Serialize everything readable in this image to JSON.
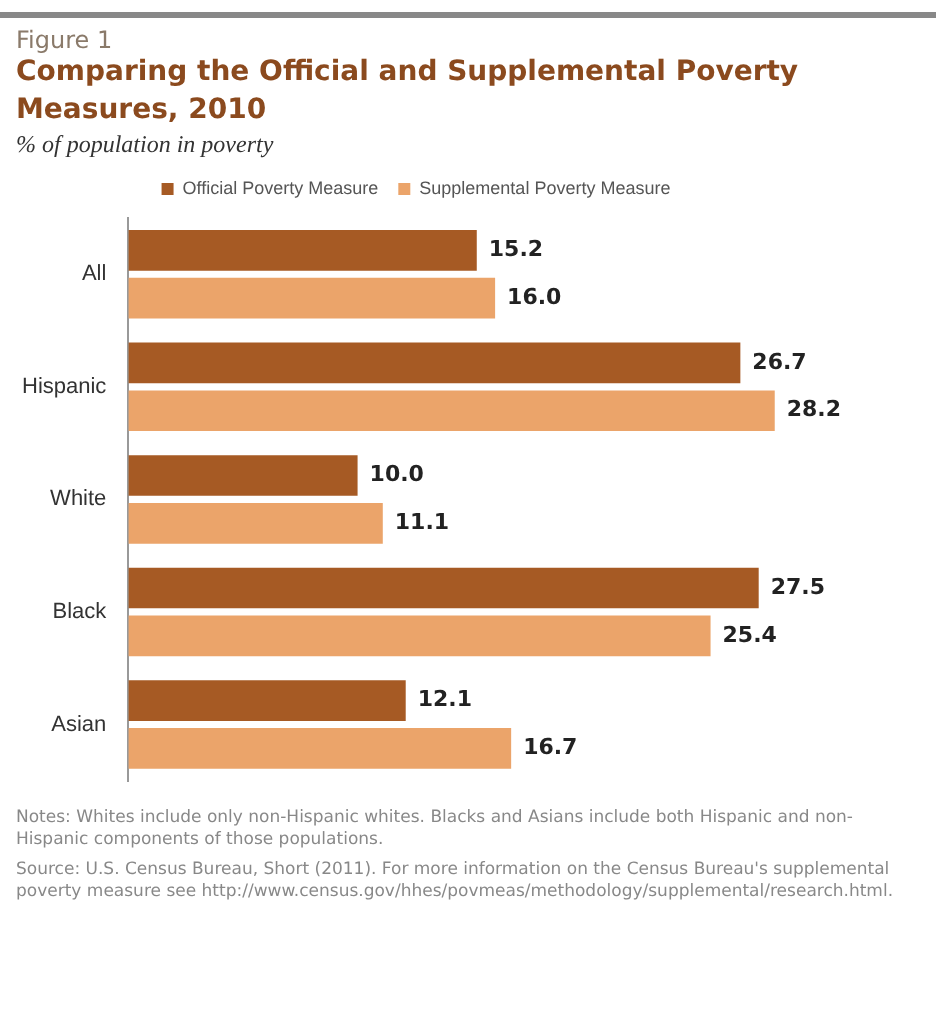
{
  "chart_data": {
    "type": "bar",
    "orientation": "horizontal",
    "title": "Comparing the Official and Supplemental Poverty Measures, 2010",
    "subtitle": "% of population in poverty",
    "categories": [
      "All",
      "Hispanic",
      "White",
      "Black",
      "Asian"
    ],
    "series": [
      {
        "name": "Official Poverty Measure",
        "color": "#a65a24",
        "values": [
          15.2,
          26.7,
          10.0,
          27.5,
          12.1
        ],
        "value_labels": [
          "15.2",
          "26.7",
          "10.0",
          "27.5",
          "12.1"
        ]
      },
      {
        "name": "Supplemental Poverty Measure",
        "color": "#eba46a",
        "values": [
          16.0,
          28.2,
          11.1,
          25.4,
          16.7
        ],
        "value_labels": [
          "16.0",
          "28.2",
          "11.1",
          "25.4",
          "16.7"
        ]
      }
    ],
    "legend": "top",
    "tick_labels": "y",
    "annotations": [
      "Figure 1",
      "Notes: Whites include only non-Hispanic whites. Blacks and Asians include both Hispanic and non-Hispanic components of those populations.",
      "Source: U.S. Census Bureau, Short (2011). For more information on the Census Bureau's supplemental poverty measure see http://www.census.gov/hhes/povmeas/methodology/supplemental/research.html."
    ]
  }
}
